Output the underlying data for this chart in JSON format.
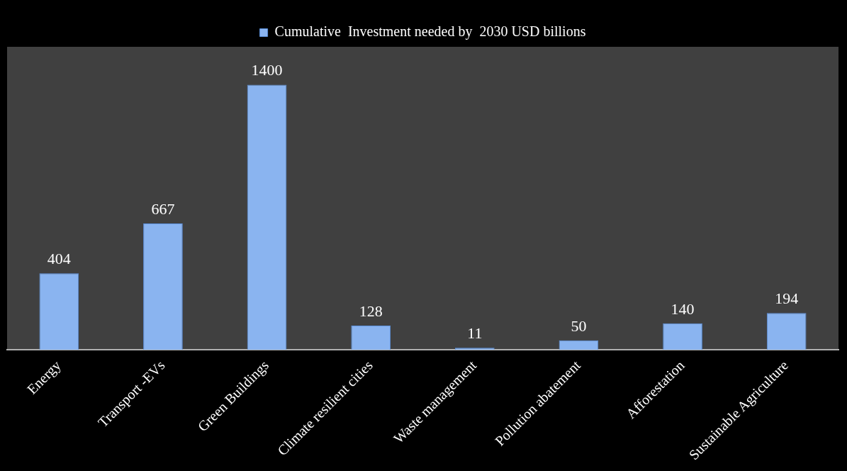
{
  "chart_data": {
    "type": "bar",
    "categories": [
      "Energy",
      "Transport -EVs",
      "Green Buildings",
      "Climate resilient cities",
      "Waste management",
      "Pollution abatement",
      "Afforestation",
      "Sustainable Agriculture"
    ],
    "series": [
      {
        "name": "Cumulative  Investment needed by  2030 USD billions",
        "color": "#8ab4f0",
        "values": [
          404,
          667,
          1400,
          128,
          11,
          50,
          140,
          194
        ]
      }
    ],
    "data_labels": true,
    "legend": "top",
    "grid": false
  }
}
